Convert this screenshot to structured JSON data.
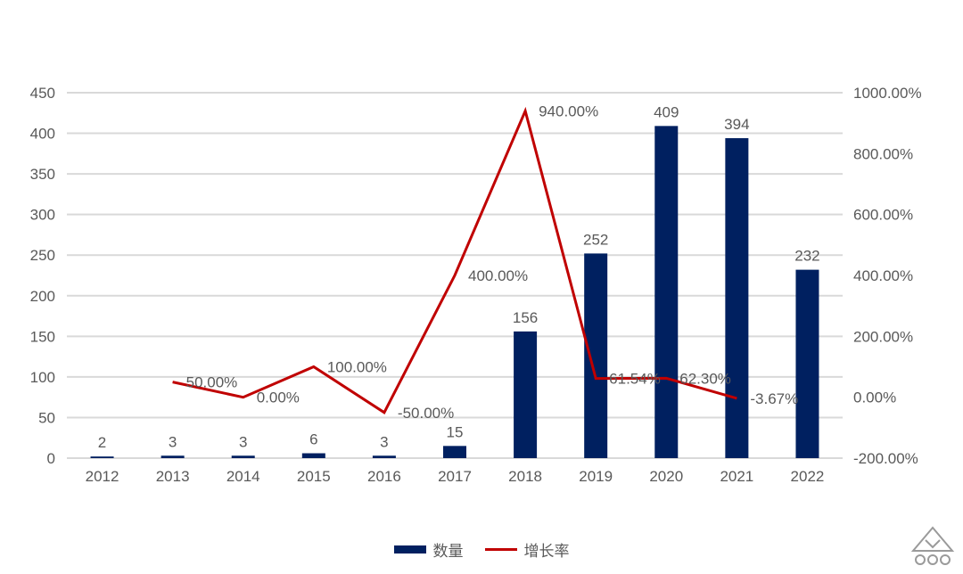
{
  "chart_data": {
    "type": "bar",
    "categories": [
      "2012",
      "2013",
      "2014",
      "2015",
      "2016",
      "2017",
      "2018",
      "2019",
      "2020",
      "2021",
      "2022"
    ],
    "series": [
      {
        "name": "数量",
        "type": "bar",
        "axis": "left",
        "color": "#002060",
        "values": [
          2,
          3,
          3,
          6,
          3,
          15,
          156,
          252,
          409,
          394,
          232
        ],
        "labels": [
          "2",
          "3",
          "3",
          "6",
          "3",
          "15",
          "156",
          "252",
          "409",
          "394",
          "232"
        ]
      },
      {
        "name": "增长率",
        "type": "line",
        "axis": "right",
        "color": "#c00000",
        "values": [
          null,
          50.0,
          0.0,
          100.0,
          -50.0,
          400.0,
          940.0,
          61.54,
          62.3,
          -3.67,
          null
        ],
        "labels": [
          "",
          "50.00%",
          "0.00%",
          "100.00%",
          "-50.00%",
          "400.00%",
          "940.00%",
          "61.54%",
          "62.30%",
          "-3.67%",
          ""
        ]
      }
    ],
    "y_left": {
      "min": 0,
      "max": 450,
      "step": 50
    },
    "y_right": {
      "min": -200,
      "max": 1000,
      "step": 200,
      "suffix": "%"
    },
    "y_left_ticks": [
      "0",
      "50",
      "100",
      "150",
      "200",
      "250",
      "300",
      "350",
      "400",
      "450"
    ],
    "y_right_ticks": [
      "-200.00%",
      "0.00%",
      "200.00%",
      "400.00%",
      "600.00%",
      "800.00%",
      "1000.00%"
    ],
    "grid": true,
    "legend_position": "bottom"
  },
  "legend": {
    "bar_label": "数量",
    "line_label": "增长率"
  }
}
